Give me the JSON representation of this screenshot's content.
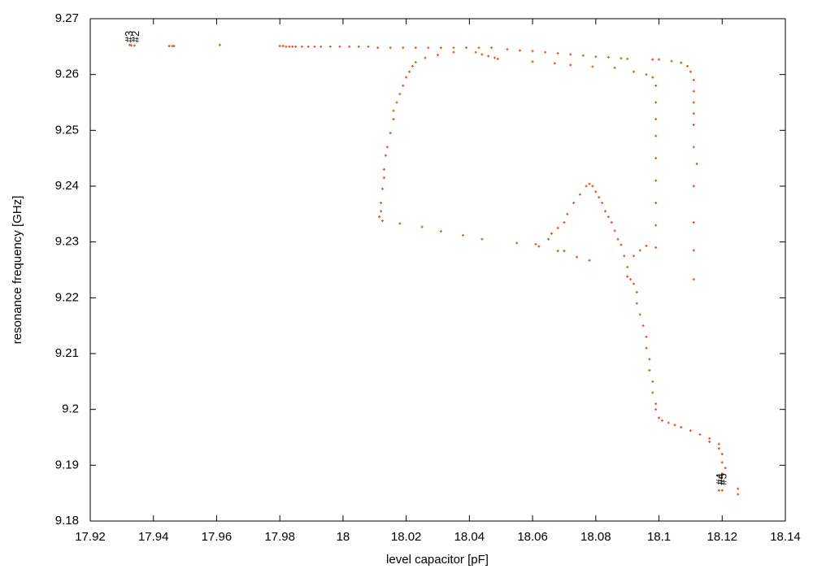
{
  "chart_data": {
    "type": "scatter",
    "xlabel": "level capacitor [pF]",
    "ylabel": "resonance frequency [GHz]",
    "color": "#e8501c",
    "xlim": [
      17.92,
      18.14
    ],
    "ylim": [
      9.18,
      9.27
    ],
    "xticks": [
      17.92,
      17.94,
      17.96,
      17.98,
      18,
      18.02,
      18.04,
      18.06,
      18.08,
      18.1,
      18.12,
      18.14
    ],
    "yticks": [
      9.18,
      9.19,
      9.2,
      9.21,
      9.22,
      9.23,
      9.24,
      9.25,
      9.26,
      9.27
    ],
    "annotations": [
      {
        "text": "#3",
        "x": 17.9325,
        "y": 9.2668
      },
      {
        "text": "#2",
        "x": 17.9345,
        "y": 9.2668
      },
      {
        "text": "#4",
        "x": 18.1195,
        "y": 9.1875
      },
      {
        "text": "#5",
        "x": 18.1205,
        "y": 9.1875
      }
    ],
    "x": [
      17.9325,
      17.933,
      17.934,
      17.945,
      17.946,
      17.9465,
      17.961,
      17.98,
      17.981,
      17.982,
      17.983,
      17.984,
      17.985,
      17.987,
      17.989,
      17.991,
      17.993,
      17.996,
      17.999,
      18.002,
      18.005,
      18.008,
      18.011,
      18.015,
      18.019,
      18.023,
      18.027,
      18.031,
      18.035,
      18.039,
      18.043,
      18.047,
      18.052,
      18.056,
      18.06,
      18.064,
      18.068,
      18.072,
      18.076,
      18.08,
      18.084,
      18.088,
      18.09,
      18.098,
      18.1,
      18.104,
      18.107,
      18.109,
      18.11,
      18.111,
      18.111,
      18.111,
      18.111,
      18.111,
      18.111,
      18.112,
      18.111,
      18.111,
      18.111,
      18.111,
      18.06,
      18.067,
      18.072,
      18.079,
      18.086,
      18.092,
      18.096,
      18.098,
      18.099,
      18.099,
      18.099,
      18.099,
      18.099,
      18.099,
      18.099,
      18.099,
      18.099,
      18.035,
      18.03,
      18.026,
      18.023,
      18.022,
      18.021,
      18.02,
      18.019,
      18.018,
      18.017,
      18.016,
      18.016,
      18.015,
      18.014,
      18.0135,
      18.013,
      18.013,
      18.0125,
      18.012,
      18.012,
      18.0115,
      18.0125,
      18.042,
      18.044,
      18.046,
      18.048,
      18.049,
      18.018,
      18.025,
      18.031,
      18.038,
      18.044,
      18.055,
      18.061,
      18.062,
      18.065,
      18.066,
      18.068,
      18.07,
      18.071,
      18.073,
      18.075,
      18.077,
      18.078,
      18.079,
      18.08,
      18.081,
      18.082,
      18.083,
      18.084,
      18.085,
      18.086,
      18.087,
      18.088,
      18.089,
      18.09,
      18.09,
      18.091,
      18.092,
      18.093,
      18.093,
      18.094,
      18.095,
      18.096,
      18.096,
      18.097,
      18.097,
      18.098,
      18.098,
      18.099,
      18.099,
      18.1,
      18.101,
      18.103,
      18.105,
      18.107,
      18.11,
      18.113,
      18.116,
      18.116,
      18.119,
      18.119,
      18.12,
      18.12,
      18.121,
      18.12,
      18.119,
      18.12,
      18.125,
      18.125,
      18.068,
      18.07,
      18.074,
      18.078,
      18.092,
      18.094,
      18.096
    ],
    "values": [
      9.2653,
      9.2652,
      9.2652,
      9.2651,
      9.2651,
      9.2651,
      9.2653,
      9.2651,
      9.2651,
      9.265,
      9.265,
      9.265,
      9.265,
      9.265,
      9.265,
      9.265,
      9.265,
      9.265,
      9.265,
      9.265,
      9.265,
      9.265,
      9.2648,
      9.2648,
      9.2648,
      9.2648,
      9.2648,
      9.2648,
      9.2648,
      9.2648,
      9.2648,
      9.2648,
      9.2645,
      9.2643,
      9.2642,
      9.264,
      9.2638,
      9.2636,
      9.2634,
      9.2632,
      9.2631,
      9.2629,
      9.2628,
      9.2627,
      9.2627,
      9.2624,
      9.2621,
      9.2615,
      9.2605,
      9.259,
      9.257,
      9.255,
      9.253,
      9.251,
      9.247,
      9.244,
      9.24,
      9.2335,
      9.2285,
      9.2233,
      9.2623,
      9.262,
      9.2617,
      9.2614,
      9.2612,
      9.2605,
      9.26,
      9.2595,
      9.258,
      9.255,
      9.252,
      9.249,
      9.245,
      9.241,
      9.237,
      9.233,
      9.229,
      9.264,
      9.2635,
      9.263,
      9.2622,
      9.2615,
      9.2605,
      9.2595,
      9.258,
      9.2565,
      9.255,
      9.2535,
      9.252,
      9.2495,
      9.247,
      9.2455,
      9.243,
      9.2415,
      9.2395,
      9.237,
      9.2355,
      9.2345,
      9.2338,
      9.264,
      9.2636,
      9.2633,
      9.263,
      9.2628,
      9.2333,
      9.2327,
      9.2319,
      9.2312,
      9.2305,
      9.2298,
      9.2296,
      9.2292,
      9.2305,
      9.2315,
      9.2325,
      9.2335,
      9.235,
      9.237,
      9.2385,
      9.24,
      9.2404,
      9.24,
      9.239,
      9.238,
      9.237,
      9.2355,
      9.2345,
      9.2335,
      9.232,
      9.2305,
      9.2295,
      9.2275,
      9.2255,
      9.2238,
      9.2233,
      9.2225,
      9.221,
      9.219,
      9.217,
      9.215,
      9.213,
      9.211,
      9.209,
      9.207,
      9.205,
      9.203,
      9.201,
      9.2,
      9.1985,
      9.198,
      9.1976,
      9.1972,
      9.1968,
      9.1962,
      9.1955,
      9.1948,
      9.1942,
      9.1938,
      9.193,
      9.192,
      9.1905,
      9.1895,
      9.1885,
      9.1855,
      9.1855,
      9.1858,
      9.1848,
      9.2284,
      9.2284,
      9.2273,
      9.2267,
      9.2275,
      9.2285,
      9.2293
    ]
  }
}
